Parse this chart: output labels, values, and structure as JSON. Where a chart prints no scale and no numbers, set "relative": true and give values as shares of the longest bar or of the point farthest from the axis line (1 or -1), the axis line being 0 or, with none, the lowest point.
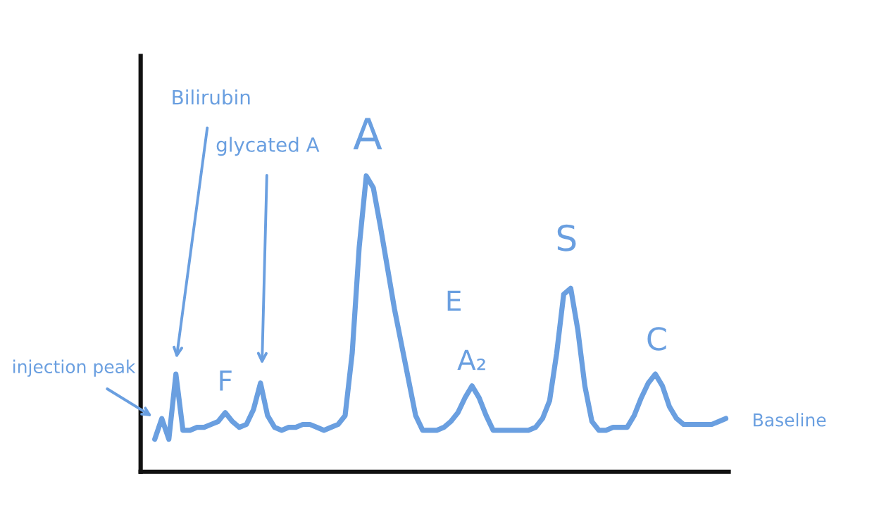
{
  "chart_data": {
    "type": "line",
    "relative": true,
    "color": "#6a9fe0",
    "categories": [
      null,
      null,
      null,
      null,
      null,
      null,
      null,
      null,
      null,
      null,
      null,
      null,
      null,
      null,
      null,
      null,
      null,
      null,
      null,
      null,
      null,
      null,
      null,
      null,
      null,
      null,
      null,
      null,
      null,
      null,
      null,
      null,
      null,
      null,
      null,
      null,
      null,
      null,
      null,
      null,
      null,
      null,
      null,
      null,
      null,
      null,
      null,
      null,
      null,
      null,
      null,
      null,
      null,
      null,
      null,
      null,
      null,
      null,
      null,
      null,
      null,
      null,
      null,
      null,
      null,
      null,
      null,
      null,
      null,
      null,
      null,
      null,
      null,
      null,
      null,
      null,
      null,
      null,
      null,
      null,
      null,
      null
    ],
    "values": [
      0.11,
      0.18,
      0.11,
      0.33,
      0.14,
      0.14,
      0.15,
      0.15,
      0.16,
      0.17,
      0.2,
      0.17,
      0.15,
      0.16,
      0.21,
      0.3,
      0.19,
      0.15,
      0.14,
      0.15,
      0.15,
      0.16,
      0.16,
      0.15,
      0.14,
      0.15,
      0.16,
      0.19,
      0.4,
      0.76,
      1.0,
      0.96,
      0.83,
      0.69,
      0.55,
      0.43,
      0.31,
      0.19,
      0.14,
      0.14,
      0.14,
      0.15,
      0.17,
      0.2,
      0.25,
      0.29,
      0.25,
      0.19,
      0.14,
      0.14,
      0.14,
      0.14,
      0.14,
      0.14,
      0.15,
      0.18,
      0.24,
      0.4,
      0.6,
      0.62,
      0.48,
      0.29,
      0.17,
      0.14,
      0.14,
      0.15,
      0.15,
      0.15,
      0.19,
      0.25,
      0.3,
      0.33,
      0.29,
      0.22,
      0.18,
      0.16,
      0.16,
      0.16,
      0.16,
      0.16,
      0.17,
      0.18
    ],
    "annotations": [
      "injection peak",
      "Bilirubin",
      "F",
      "glycated A",
      "A",
      "E",
      "A₂",
      "S",
      "C",
      "Baseline"
    ],
    "grid": false,
    "legend": false,
    "marker": "none",
    "line_style": "solid"
  }
}
